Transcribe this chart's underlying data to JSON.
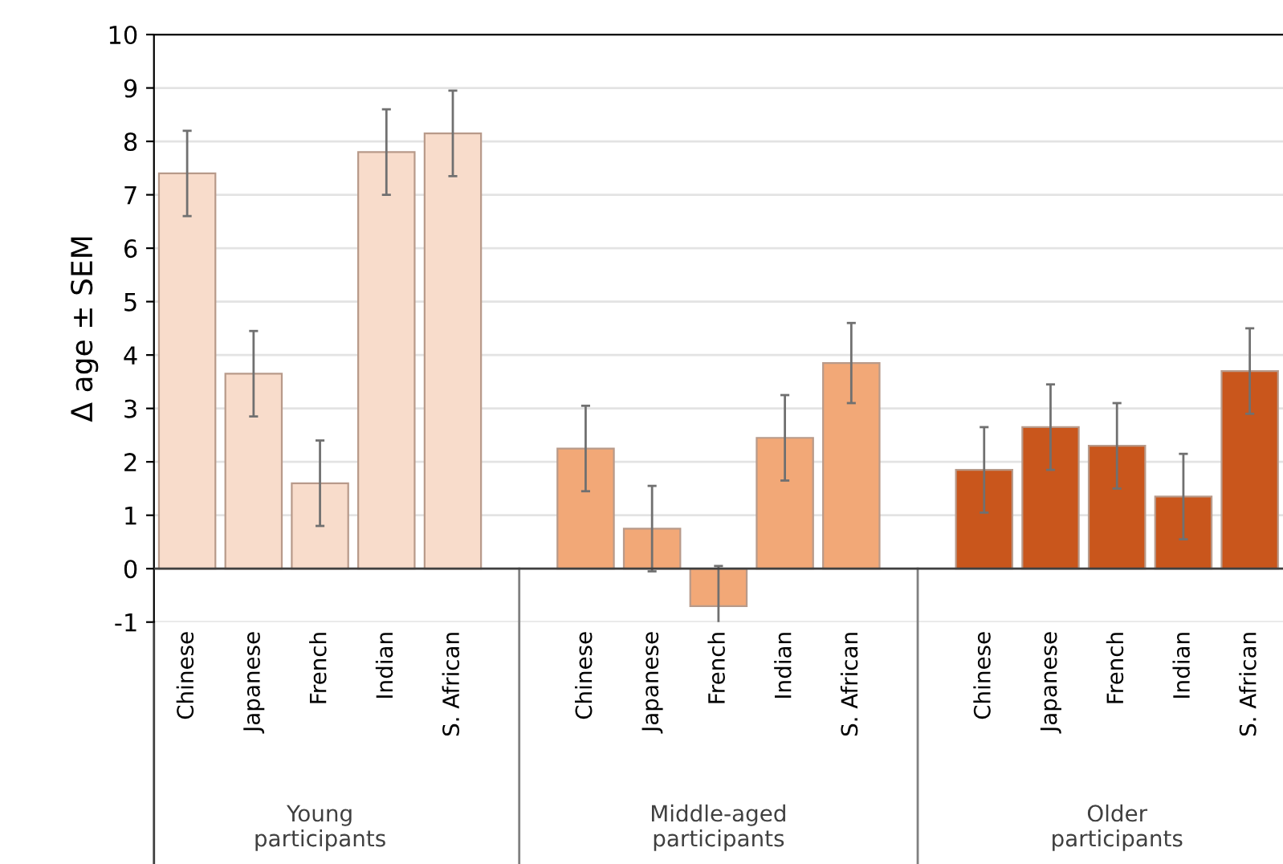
{
  "chart_data": {
    "type": "bar",
    "ylabel": "Δ age ± SEM",
    "categories": [
      "Chinese",
      "Japanese",
      "French",
      "Indian",
      "S. African",
      null,
      "Chinese",
      "Japanese",
      "French",
      "Indian",
      "S. African",
      null,
      "Chinese",
      "Japanese",
      "French",
      "Indian",
      "S. African"
    ],
    "values": [
      7.4,
      3.65,
      1.6,
      7.8,
      8.15,
      null,
      2.25,
      0.75,
      -0.7,
      2.45,
      3.85,
      null,
      1.85,
      2.65,
      2.3,
      1.35,
      3.7
    ],
    "errors": [
      0.8,
      0.8,
      0.8,
      0.8,
      0.8,
      null,
      0.8,
      0.8,
      0.75,
      0.8,
      0.75,
      null,
      0.8,
      0.8,
      0.8,
      0.8,
      0.8
    ],
    "colors": [
      "#f8dccb",
      "#f8dccb",
      "#f8dccb",
      "#f8dccb",
      "#f8dccb",
      null,
      "#f2a877",
      "#f2a877",
      "#f2a877",
      "#f2a877",
      "#f2a877",
      null,
      "#c9561c",
      "#c9561c",
      "#c9561c",
      "#c9561c",
      "#c9561c"
    ],
    "annotations": [
      "Young\nparticipants",
      "Middle-aged\nparticipants",
      "Older\nparticipants"
    ],
    "ylim": [
      -1,
      10
    ],
    "yticks": [
      -1,
      0,
      1,
      2,
      3,
      4,
      5,
      6,
      7,
      8,
      9,
      10
    ],
    "grid": "y"
  }
}
